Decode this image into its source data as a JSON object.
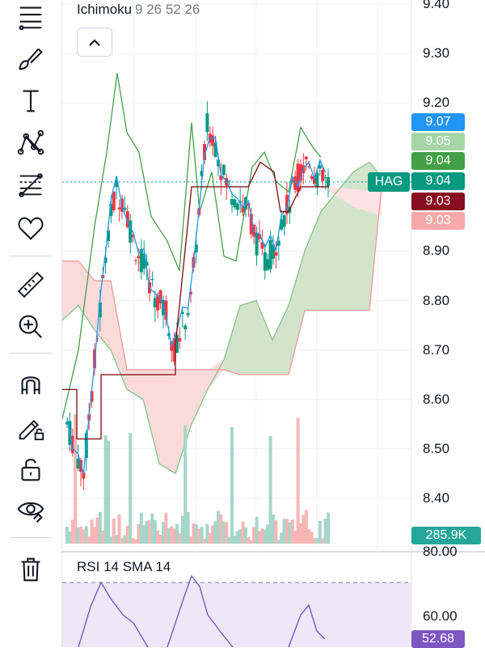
{
  "indicator": {
    "name": "Ichimoku",
    "params": "9 26 52 26"
  },
  "rsi": {
    "name": "RSI",
    "params": "14 SMA 14",
    "value": "52.68",
    "tick": "60.00",
    "level": 52.68
  },
  "price_ticks": [
    "9.40",
    "9.30",
    "9.20",
    "8.90",
    "8.80",
    "8.70",
    "8.60",
    "8.50",
    "8.40"
  ],
  "price_labels": [
    {
      "text": "9.07",
      "color": "#2196f3"
    },
    {
      "text": "9.05",
      "color": "#a5d6a7"
    },
    {
      "text": "9.04",
      "color": "#43a047"
    },
    {
      "text": "9.04",
      "color": "#089981"
    },
    {
      "text": "9.03",
      "color": "#880e1f"
    },
    {
      "text": "9.03",
      "color": "#f7a9a9"
    }
  ],
  "symbol_badge": "HAG",
  "volume_label": "285.9K",
  "rsi_scale_top": "80.00",
  "tools": [
    "menu-icon",
    "brush-icon",
    "text-icon",
    "pattern-icon",
    "fib-icon",
    "heart-icon",
    "ruler-icon",
    "zoom-in-icon",
    "magnet-icon",
    "lock-pencil-icon",
    "unlock-icon",
    "eye-icon",
    "trash-icon"
  ],
  "colors": {
    "up": "#089981",
    "down": "#f23645",
    "conversion": "#2196f3",
    "base": "#801922",
    "lagging": "#43a047",
    "cloud_up": "#c8e6c9",
    "cloud_down": "#fcd4d4",
    "rsi": "#7e57c2"
  }
}
